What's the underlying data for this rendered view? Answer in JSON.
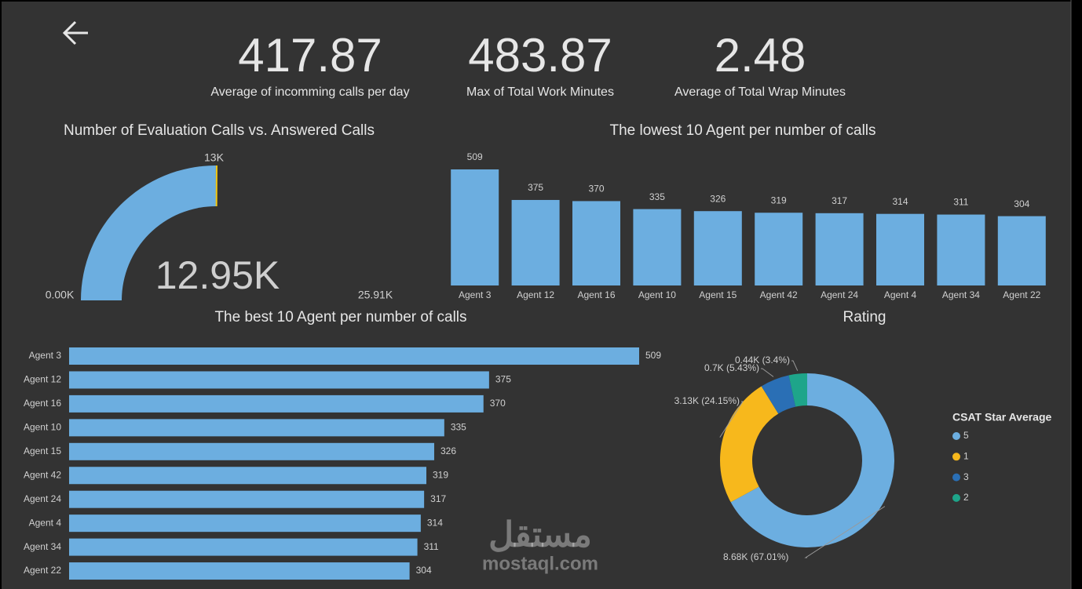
{
  "kpis": [
    {
      "value": "417.87",
      "label": "Average of incomming calls per day"
    },
    {
      "value": "483.87",
      "label": "Max of Total Work Minutes"
    },
    {
      "value": "2.48",
      "label": "Average of Total Wrap Minutes"
    }
  ],
  "watermark": {
    "arabic": "مستقل",
    "latin": "mostaql.com"
  },
  "chart_data": [
    {
      "type": "gauge",
      "title": "Number of Evaluation Calls vs. Answered Calls",
      "values": [
        12950
      ],
      "value_labels": [
        "12.95K"
      ],
      "color": "#6caee0",
      "ylim": [
        0,
        25910
      ],
      "yticks": [
        {
          "value": 0,
          "label": "0.00K"
        },
        {
          "value": 25910,
          "label": "25.91K"
        }
      ],
      "target": {
        "value": 13000,
        "label": "13K"
      },
      "target_color": "#f2c811"
    },
    {
      "type": "bar",
      "title": "The lowest 10 Agent per number of calls",
      "categories": [
        "Agent 3",
        "Agent 12",
        "Agent 16",
        "Agent 10",
        "Agent 15",
        "Agent 42",
        "Agent 24",
        "Agent 4",
        "Agent 34",
        "Agent 22"
      ],
      "values": [
        509,
        375,
        370,
        335,
        326,
        319,
        317,
        314,
        311,
        304
      ],
      "color": "#6caee0"
    },
    {
      "type": "hbar",
      "title": "The best 10 Agent per number of calls",
      "categories": [
        "Agent 3",
        "Agent 12",
        "Agent 16",
        "Agent 10",
        "Agent 15",
        "Agent 42",
        "Agent 24",
        "Agent 4",
        "Agent 34",
        "Agent 22"
      ],
      "values": [
        509,
        375,
        370,
        335,
        326,
        319,
        317,
        314,
        311,
        304
      ],
      "color": "#6caee0"
    },
    {
      "type": "donut",
      "title": "Rating",
      "legend_title": "CSAT Star Average",
      "categories": [
        "5",
        "1",
        "3",
        "2"
      ],
      "values": [
        8680,
        3130,
        700,
        440
      ],
      "value_labels": [
        "8.68K (67.01%)",
        "3.13K (24.15%)",
        "0.7K (5.43%)",
        "0.44K (3.4%)"
      ],
      "colors": [
        "#6caee0",
        "#f7b81c",
        "#2a6fb5",
        "#1ea58a"
      ]
    }
  ]
}
